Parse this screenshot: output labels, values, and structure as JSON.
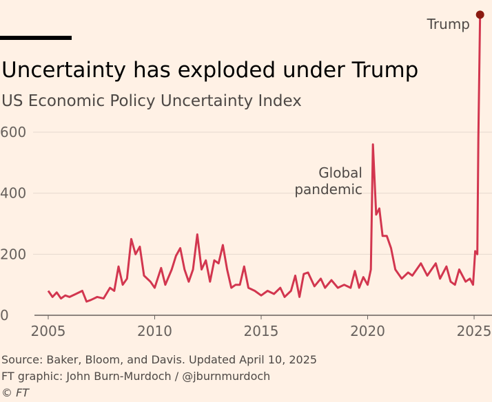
{
  "chart_data": {
    "type": "line",
    "title": "Uncertainty has exploded under Trump",
    "subtitle": "US Economic Policy Uncertainty Index",
    "source": [
      "Source: Baker, Bloom, and Davis. Updated April 10, 2025",
      "FT graphic: John Burn-Murdoch / @jburnmurdoch",
      "© FT"
    ],
    "annotations": [
      [
        "Global",
        "pandemic"
      ],
      [
        "Trump"
      ]
    ],
    "x": [
      2005.0,
      2005.2,
      2005.4,
      2005.6,
      2005.8,
      2006.0,
      2006.3,
      2006.6,
      2006.8,
      2007.0,
      2007.3,
      2007.6,
      2007.9,
      2008.1,
      2008.3,
      2008.5,
      2008.7,
      2008.9,
      2009.1,
      2009.3,
      2009.5,
      2009.8,
      2010.0,
      2010.3,
      2010.5,
      2010.8,
      2011.0,
      2011.2,
      2011.4,
      2011.6,
      2011.8,
      2012.0,
      2012.2,
      2012.4,
      2012.6,
      2012.8,
      2013.0,
      2013.2,
      2013.4,
      2013.6,
      2013.8,
      2014.0,
      2014.2,
      2014.4,
      2014.7,
      2015.0,
      2015.3,
      2015.6,
      2015.9,
      2016.1,
      2016.4,
      2016.6,
      2016.8,
      2017.0,
      2017.2,
      2017.5,
      2017.8,
      2018.0,
      2018.3,
      2018.6,
      2018.9,
      2019.2,
      2019.4,
      2019.6,
      2019.8,
      2020.0,
      2020.15,
      2020.25,
      2020.4,
      2020.55,
      2020.7,
      2020.9,
      2021.1,
      2021.3,
      2021.6,
      2021.9,
      2022.1,
      2022.3,
      2022.5,
      2022.8,
      2023.0,
      2023.2,
      2023.4,
      2023.7,
      2023.9,
      2024.1,
      2024.3,
      2024.6,
      2024.8,
      2024.95,
      2025.05,
      2025.15,
      2025.2,
      2025.28
    ],
    "series": [
      {
        "color": "#d2364f",
        "values": [
          80,
          60,
          75,
          55,
          65,
          60,
          70,
          80,
          45,
          50,
          60,
          55,
          90,
          80,
          160,
          100,
          120,
          250,
          200,
          225,
          130,
          110,
          90,
          155,
          100,
          150,
          195,
          220,
          150,
          110,
          150,
          265,
          150,
          180,
          110,
          180,
          170,
          230,
          150,
          90,
          100,
          100,
          160,
          90,
          80,
          65,
          80,
          70,
          90,
          60,
          80,
          130,
          60,
          135,
          140,
          95,
          120,
          90,
          115,
          90,
          100,
          90,
          145,
          90,
          125,
          100,
          150,
          560,
          330,
          350,
          260,
          260,
          220,
          150,
          120,
          140,
          130,
          150,
          170,
          130,
          150,
          170,
          120,
          160,
          110,
          100,
          150,
          110,
          120,
          100,
          210,
          200,
          580,
          985
        ]
      }
    ],
    "end_dot_color": "#8b1a10",
    "xlim": [
      2004.8,
      2025.4
    ],
    "xticks": [
      2005,
      2010,
      2015,
      2020,
      2025
    ],
    "ylim": [
      0,
      990
    ],
    "yticks": [
      0,
      200,
      400,
      600
    ],
    "grid": true
  }
}
